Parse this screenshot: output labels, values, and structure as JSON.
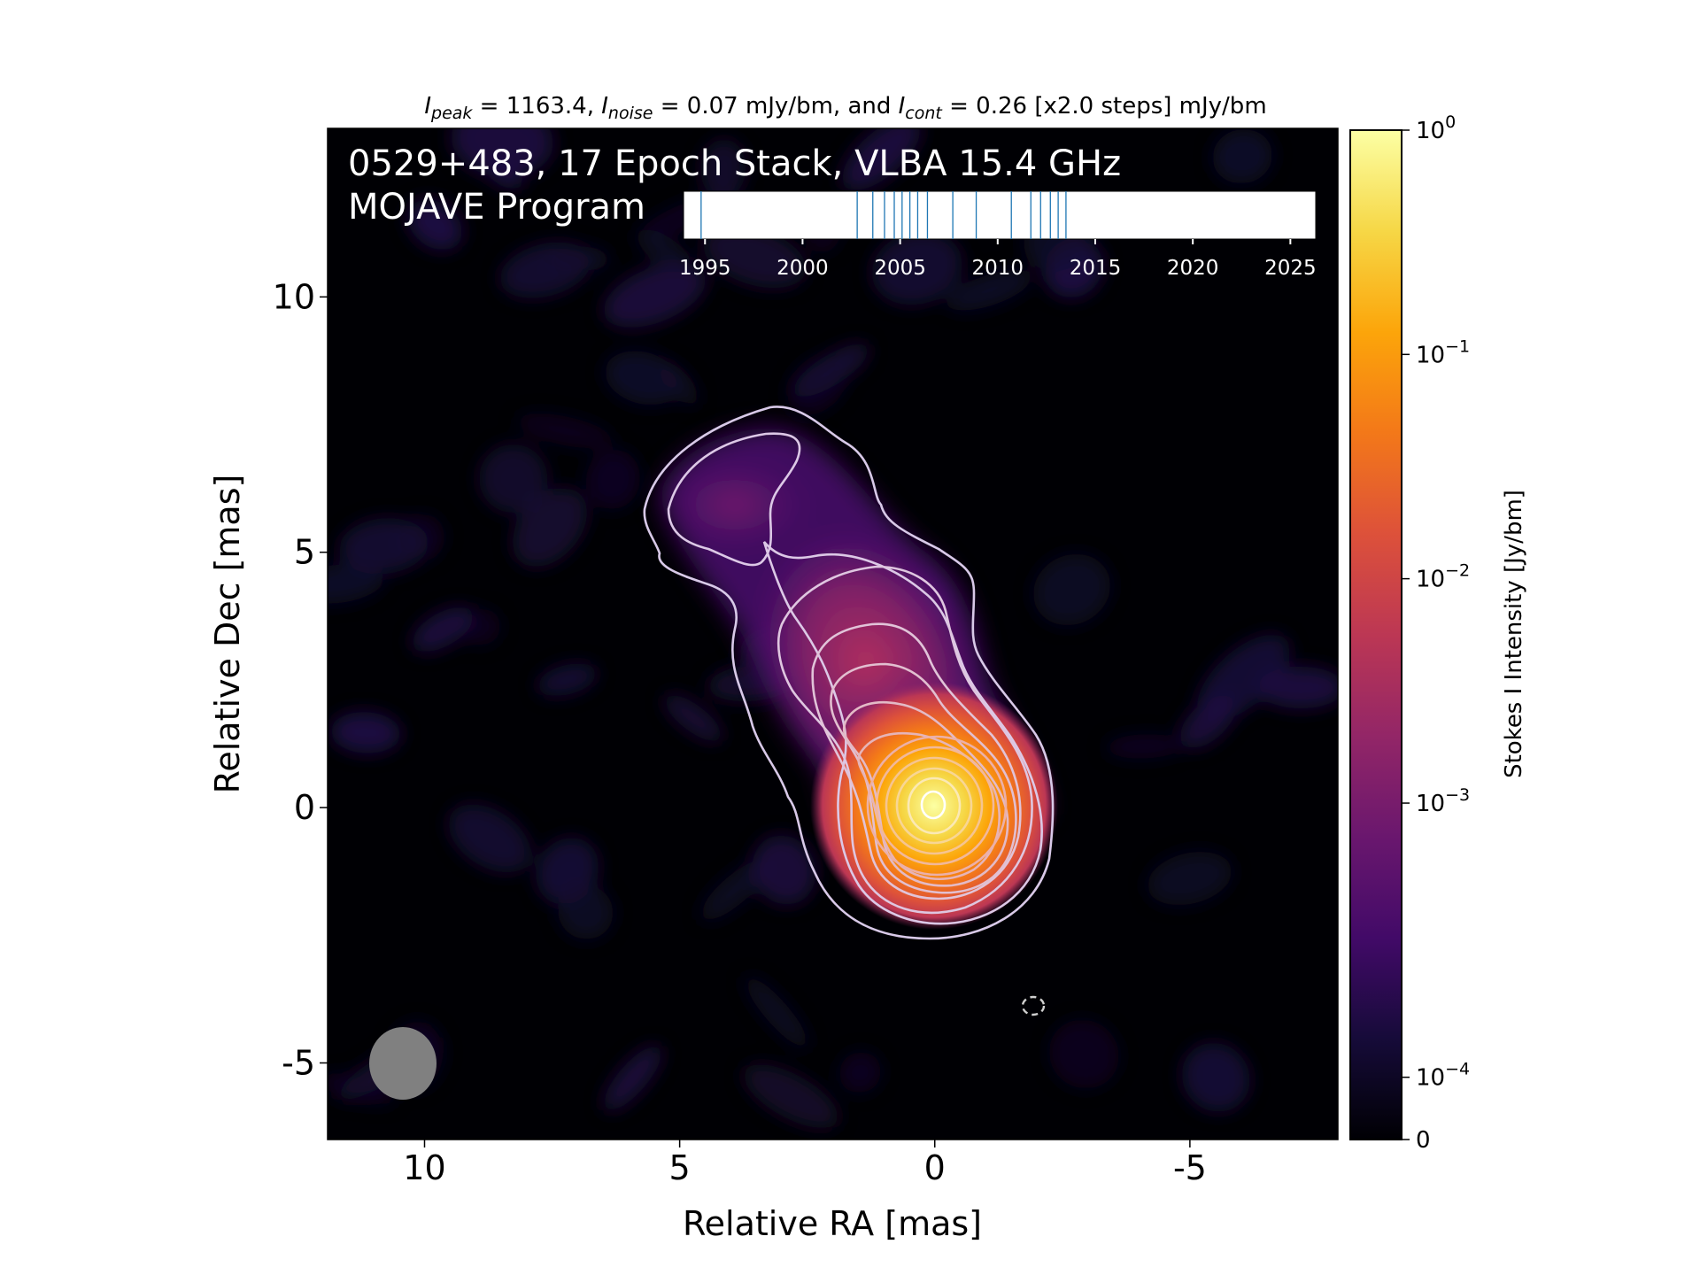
{
  "chart_data": {
    "type": "heatmap",
    "header": {
      "peak_label": "peak",
      "peak_text": " = 1163.4, ",
      "noise_label": "noise",
      "noise_text": " = 0.07 mJy/bm, and ",
      "cont_label": "cont",
      "cont_text": " = 0.26 [x2.0 steps] mJy/bm",
      "symbol": "I"
    },
    "title_line1": "0529+483, 17 Epoch Stack, VLBA 15.4 GHz",
    "title_line2": "MOJAVE Program",
    "xlabel": "Relative RA [mas]",
    "ylabel": "Relative Dec [mas]",
    "xlim": [
      11.9,
      -7.9
    ],
    "ylim": [
      -6.5,
      13.3
    ],
    "x_ticks": [
      {
        "value": 10,
        "label": "10"
      },
      {
        "value": 5,
        "label": "5"
      },
      {
        "value": 0,
        "label": "0"
      },
      {
        "value": -5,
        "label": "-5"
      }
    ],
    "y_ticks": [
      {
        "value": 10,
        "label": "10"
      },
      {
        "value": 5,
        "label": "5"
      },
      {
        "value": 0,
        "label": "0"
      },
      {
        "value": -5,
        "label": "-5"
      }
    ],
    "colorbar": {
      "label": "Stokes I Intensity [Jy/bm]",
      "colormap": "inferno",
      "ticks": [
        {
          "base": "10",
          "exp": "0",
          "frac": 0.0
        },
        {
          "base": "10",
          "exp": "−1",
          "frac": 0.2222
        },
        {
          "base": "10",
          "exp": "−2",
          "frac": 0.4444
        },
        {
          "base": "10",
          "exp": "−3",
          "frac": 0.6667
        },
        {
          "base": "10",
          "exp": "−4",
          "frac": 0.9383
        },
        {
          "base": "",
          "exp": "",
          "label": "0",
          "frac": 1.0
        }
      ]
    },
    "epoch_timeline": {
      "range": [
        1993.9,
        2026.3
      ],
      "tick_years": [
        "1995",
        "2000",
        "2005",
        "2010",
        "2015",
        "2020",
        "2025"
      ],
      "epochs": [
        1994.8,
        2002.8,
        2003.6,
        2004.2,
        2004.7,
        2005.1,
        2005.5,
        2005.9,
        2006.4,
        2007.7,
        2008.9,
        2010.7,
        2011.7,
        2012.2,
        2012.7,
        2013.1,
        2013.5
      ],
      "line_color": "#1f77b4"
    },
    "beam": {
      "major_mas": 1.45,
      "minor_mas": 1.3,
      "color": "#808080"
    },
    "contour_levels_mJy": [
      0.26,
      0.52,
      1.04,
      2.08,
      4.16,
      8.32,
      16.64,
      33.28,
      66.56,
      133.12,
      266.24,
      532.48,
      1064.96
    ]
  }
}
